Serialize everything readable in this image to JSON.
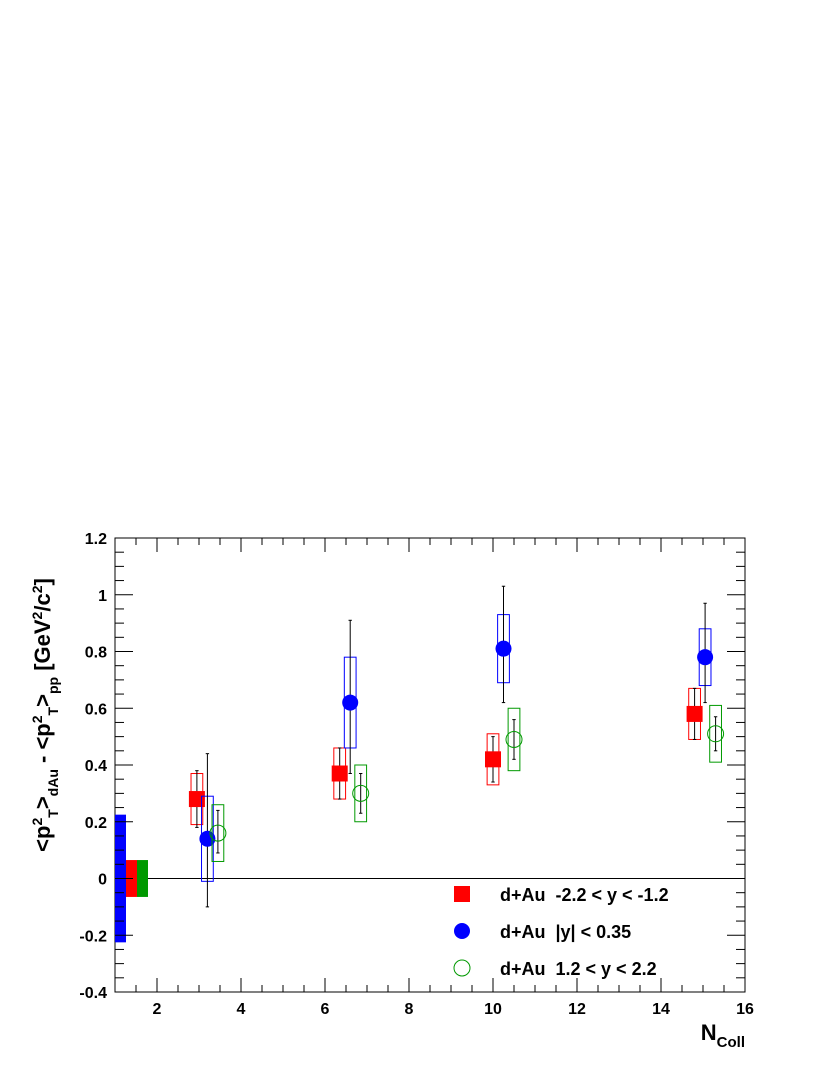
{
  "chart_data": {
    "type": "scatter",
    "xlabel": {
      "main": "N",
      "sub": "Coll"
    },
    "ylabel": {
      "parts": [
        {
          "t": "<p",
          "style": "normal"
        },
        {
          "t": "2",
          "style": "sup"
        },
        {
          "t": "T",
          "style": "sub"
        },
        {
          "t": ">",
          "style": "normal"
        },
        {
          "t": "dAu",
          "style": "sub"
        },
        {
          "t": " - <p",
          "style": "normal"
        },
        {
          "t": "2",
          "style": "sup"
        },
        {
          "t": "T",
          "style": "sub"
        },
        {
          "t": ">",
          "style": "normal"
        },
        {
          "t": "pp",
          "style": "sub"
        },
        {
          "t": " [GeV",
          "style": "normal"
        },
        {
          "t": "2",
          "style": "sup"
        },
        {
          "t": "/c",
          "style": "normal"
        },
        {
          "t": "2",
          "style": "sup"
        },
        {
          "t": "]",
          "style": "normal"
        }
      ]
    },
    "xlim": [
      1,
      16
    ],
    "ylim": [
      -0.4,
      1.2
    ],
    "xticks": [
      2,
      4,
      6,
      8,
      10,
      12,
      14,
      16
    ],
    "yticks": [
      -0.4,
      -0.2,
      0,
      0.2,
      0.4,
      0.6,
      0.8,
      1,
      1.2
    ],
    "xtick_labels": [
      "2",
      "4",
      "6",
      "8",
      "10",
      "12",
      "14",
      "16"
    ],
    "ytick_labels": [
      "-0.4",
      "-0.2",
      "0",
      "0.2",
      "0.4",
      "0.6",
      "0.8",
      "1",
      "1.2"
    ],
    "grid": false,
    "zero_line": true,
    "legend_position": "bottom-right",
    "series": [
      {
        "name": "d+Au  -2.2 < y < -1.2",
        "marker": "filled-square",
        "color": "#ff0000",
        "points": [
          {
            "x": 2.95,
            "y": 0.28,
            "stat_lo": 0.18,
            "stat_hi": 0.38,
            "sys_lo": 0.19,
            "sys_hi": 0.37
          },
          {
            "x": 6.35,
            "y": 0.37,
            "stat_lo": 0.28,
            "stat_hi": 0.46,
            "sys_lo": 0.28,
            "sys_hi": 0.46
          },
          {
            "x": 10.0,
            "y": 0.42,
            "stat_lo": 0.34,
            "stat_hi": 0.5,
            "sys_lo": 0.33,
            "sys_hi": 0.51
          },
          {
            "x": 14.8,
            "y": 0.58,
            "stat_lo": 0.49,
            "stat_hi": 0.67,
            "sys_lo": 0.49,
            "sys_hi": 0.67
          }
        ]
      },
      {
        "name": "d+Au  |y| < 0.35",
        "marker": "filled-circle",
        "color": "#0000ff",
        "points": [
          {
            "x": 3.2,
            "y": 0.14,
            "stat_lo": -0.1,
            "stat_hi": 0.44,
            "sys_lo": -0.01,
            "sys_hi": 0.29
          },
          {
            "x": 6.6,
            "y": 0.62,
            "stat_lo": 0.37,
            "stat_hi": 0.91,
            "sys_lo": 0.46,
            "sys_hi": 0.78
          },
          {
            "x": 10.25,
            "y": 0.81,
            "stat_lo": 0.62,
            "stat_hi": 1.03,
            "sys_lo": 0.69,
            "sys_hi": 0.93
          },
          {
            "x": 15.05,
            "y": 0.78,
            "stat_lo": 0.62,
            "stat_hi": 0.97,
            "sys_lo": 0.68,
            "sys_hi": 0.88
          }
        ]
      },
      {
        "name": "d+Au  1.2 < y < 2.2",
        "marker": "open-circle",
        "color": "#009900",
        "points": [
          {
            "x": 3.45,
            "y": 0.16,
            "stat_lo": 0.09,
            "stat_hi": 0.24,
            "sys_lo": 0.06,
            "sys_hi": 0.26
          },
          {
            "x": 6.85,
            "y": 0.3,
            "stat_lo": 0.23,
            "stat_hi": 0.37,
            "sys_lo": 0.2,
            "sys_hi": 0.4
          },
          {
            "x": 10.5,
            "y": 0.49,
            "stat_lo": 0.42,
            "stat_hi": 0.56,
            "sys_lo": 0.38,
            "sys_hi": 0.6
          },
          {
            "x": 15.3,
            "y": 0.51,
            "stat_lo": 0.45,
            "stat_hi": 0.57,
            "sys_lo": 0.41,
            "sys_hi": 0.61
          }
        ]
      }
    ],
    "global_uncertainty_bands": [
      {
        "color": "#0000ff",
        "lo": -0.225,
        "hi": 0.225
      },
      {
        "color": "#ff0000",
        "lo": -0.065,
        "hi": 0.065
      },
      {
        "color": "#009900",
        "lo": -0.065,
        "hi": 0.065
      }
    ]
  }
}
